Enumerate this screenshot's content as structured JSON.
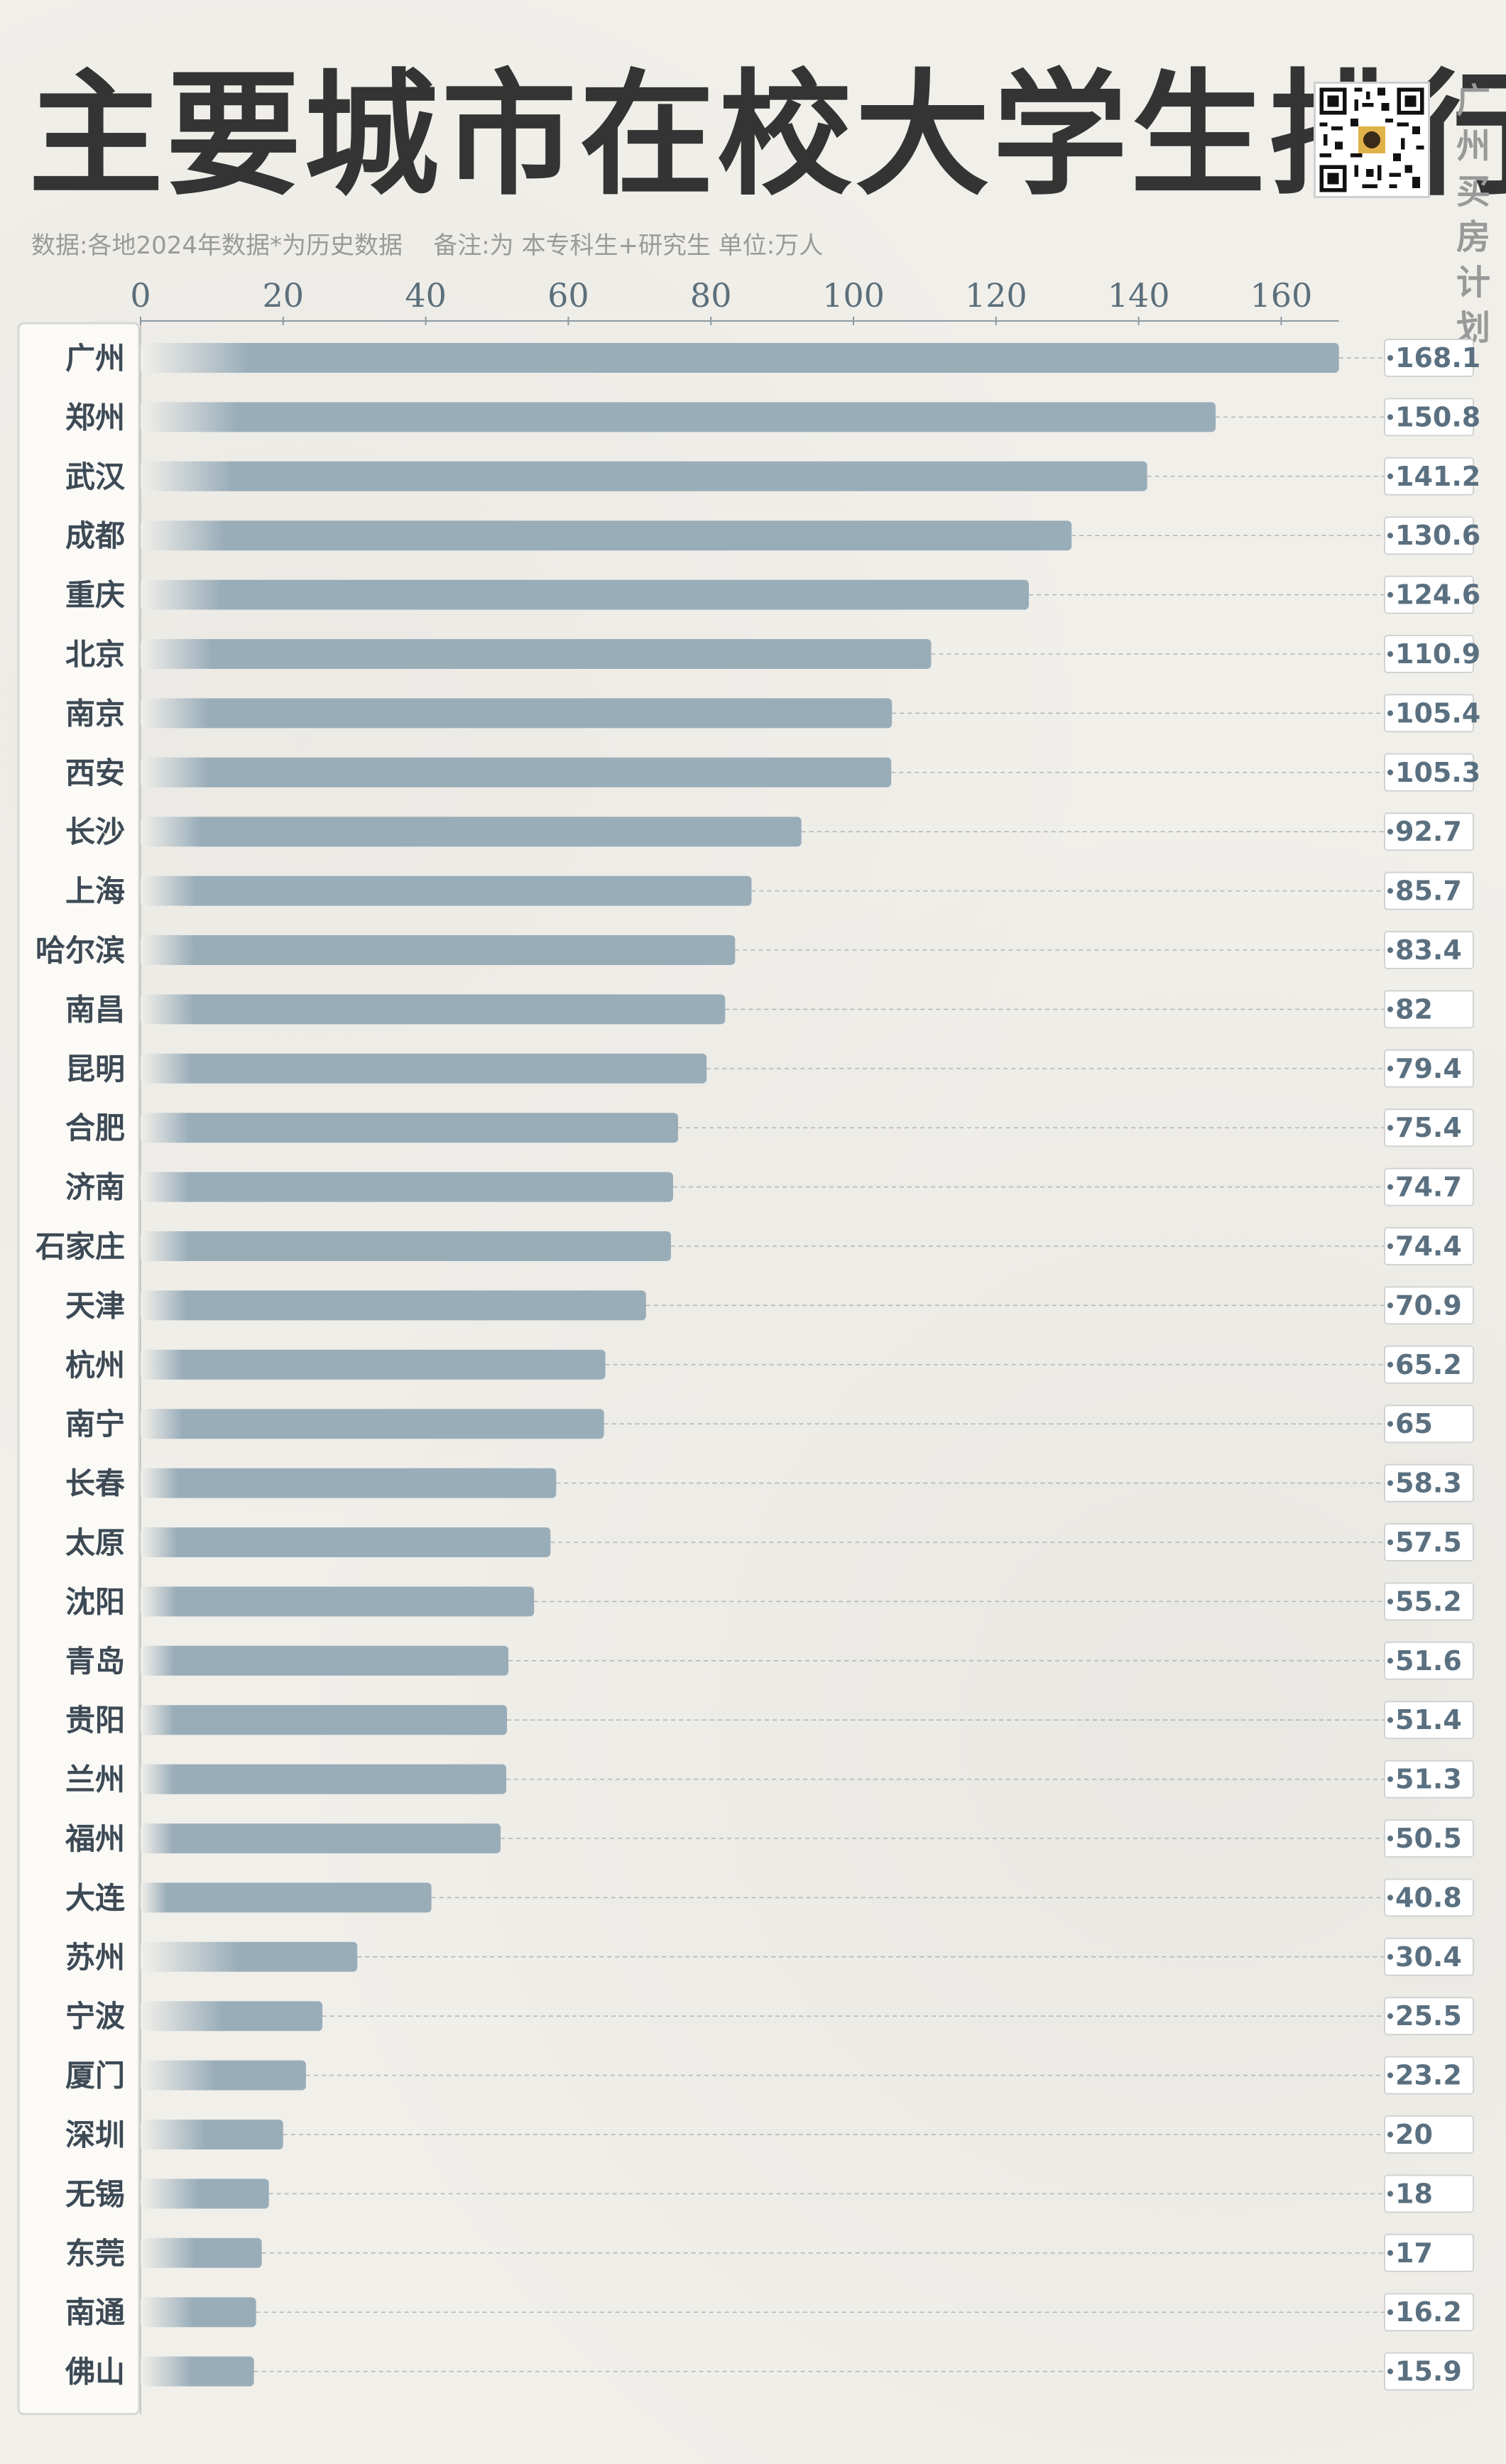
{
  "title": "主要城市在校大学生排行",
  "subtitle": "数据:各地2024年数据*为历史数据    备注:为 本专科生+研究生 单位:万人",
  "side_text": [
    "广",
    "州",
    "买",
    "房",
    "计",
    "划"
  ],
  "colors": {
    "bar": "#99adb9",
    "bar_fade": "#f1efea",
    "axis": "#8a9aa4",
    "label_box": "#ffffff",
    "background": "#f1efea"
  },
  "chart_data": {
    "type": "bar",
    "orientation": "horizontal",
    "title": "主要城市在校大学生排行",
    "xlabel": "",
    "ylabel": "",
    "xlim": [
      0,
      168.1
    ],
    "xticks": [
      0,
      20,
      40,
      60,
      80,
      100,
      120,
      140,
      160
    ],
    "grid": false,
    "categories": [
      "广州",
      "郑州",
      "武汉",
      "成都",
      "重庆",
      "北京",
      "南京",
      "西安",
      "长沙",
      "上海",
      "哈尔滨",
      "南昌",
      "昆明",
      "合肥",
      "济南",
      "石家庄",
      "天津",
      "杭州",
      "南宁",
      "长春",
      "太原",
      "沈阳",
      "青岛",
      "贵阳",
      "兰州",
      "福州",
      "大连",
      "苏州",
      "宁波",
      "厦门",
      "深圳",
      "无锡",
      "东莞",
      "南通",
      "佛山"
    ],
    "values": [
      168.1,
      150.8,
      141.2,
      130.6,
      124.6,
      110.9,
      105.4,
      105.3,
      92.7,
      85.7,
      83.4,
      82,
      79.4,
      75.4,
      74.7,
      74.4,
      70.9,
      65.2,
      65,
      58.3,
      57.5,
      55.2,
      51.6,
      51.4,
      51.3,
      50.5,
      40.8,
      30.4,
      25.5,
      23.2,
      20,
      18,
      17,
      16.2,
      15.9
    ],
    "value_labels": [
      "168.1",
      "150.8",
      "141.2",
      "130.6",
      "124.6",
      "110.9",
      "105.4",
      "105.3",
      "92.7",
      "85.7",
      "83.4",
      "82",
      "79.4",
      "75.4",
      "74.7",
      "74.4",
      "70.9",
      "65.2",
      "65",
      "58.3",
      "57.5",
      "55.2",
      "51.6",
      "51.4",
      "51.3",
      "50.5",
      "40.8",
      "30.4",
      "25.5",
      "23.2",
      "20",
      "18",
      "17",
      "16.2",
      "15.9"
    ]
  }
}
